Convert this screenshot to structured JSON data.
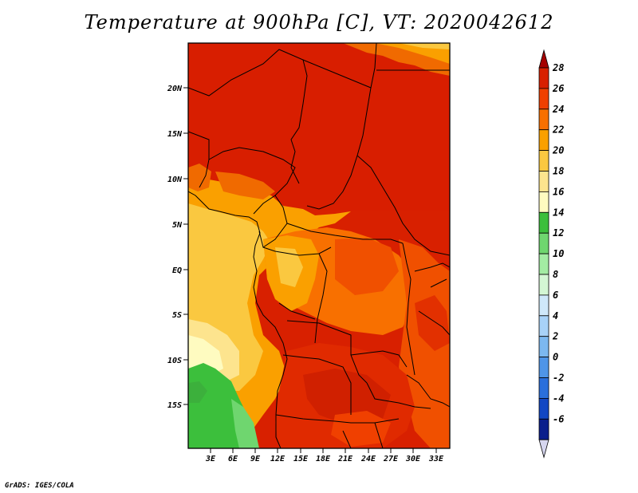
{
  "title": "Temperature at 900hPa [C], VT: 2020042612",
  "credit": "GrADS: IGES/COLA",
  "map": {
    "lat_labels": [
      "20N",
      "15N",
      "10N",
      "5N",
      "EQ",
      "5S",
      "10S",
      "15S"
    ],
    "lon_labels": [
      "3E",
      "6E",
      "9E",
      "12E",
      "15E",
      "18E",
      "21E",
      "24E",
      "27E",
      "30E",
      "33E"
    ]
  },
  "colorbar": {
    "labels": [
      "28",
      "26",
      "24",
      "22",
      "20",
      "18",
      "16",
      "14",
      "12",
      "10",
      "8",
      "6",
      "4",
      "2",
      "0",
      "-2",
      "-4",
      "-6"
    ],
    "colors": [
      "#a50000",
      "#d82000",
      "#f04000",
      "#f87000",
      "#faa000",
      "#fac840",
      "#fde48e",
      "#fefbc0",
      "#3cbf3c",
      "#6fd66f",
      "#a3eca3",
      "#d4f7d4",
      "#cfe8fa",
      "#a8d2f8",
      "#7cb8f0",
      "#4f95e8",
      "#2a6fdc",
      "#1247c4",
      "#0a1f8c",
      "#d6d6ef"
    ]
  }
}
